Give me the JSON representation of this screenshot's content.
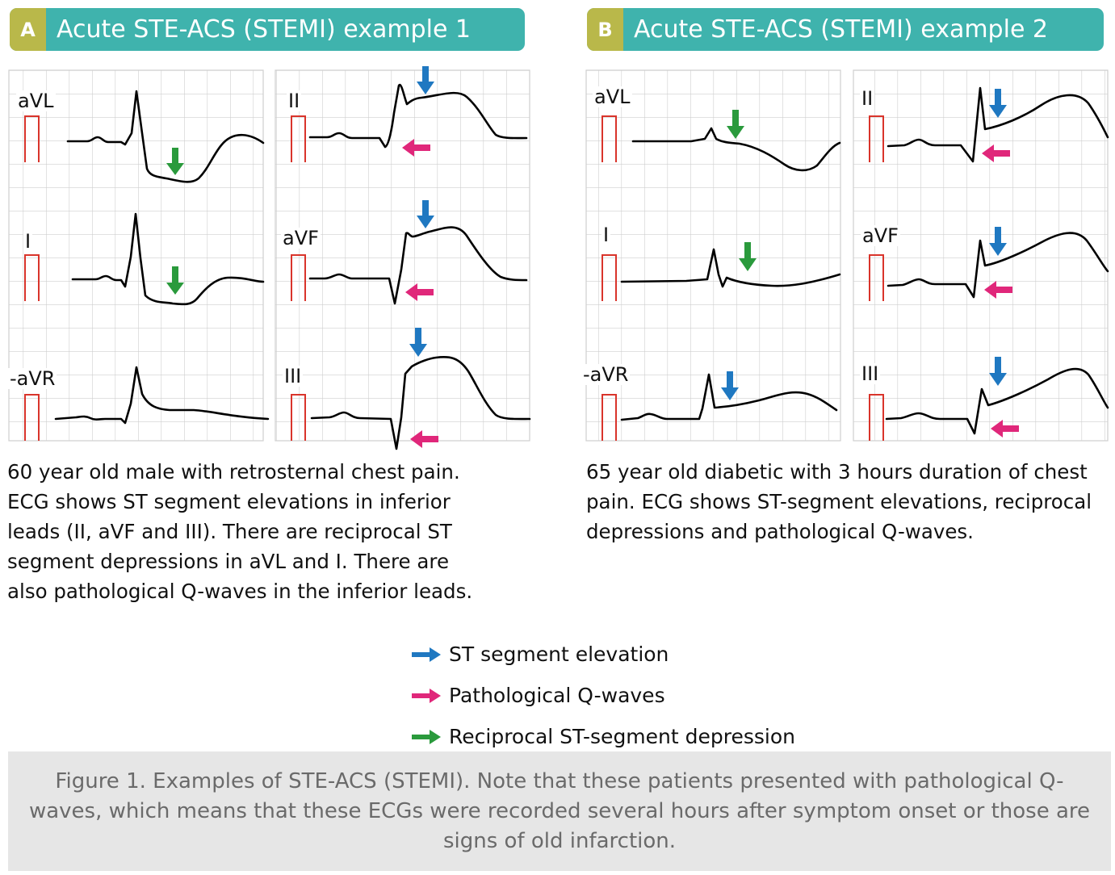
{
  "panels": [
    {
      "letter": "A",
      "title": "Acute STE-ACS (STEMI) example 1",
      "leads": [
        "aVL",
        "II",
        "I",
        "aVF",
        "-aVR",
        "III"
      ],
      "description": [
        "60 year old male with retrosternal chest pain.",
        "ECG shows ST segment elevations in inferior",
        "leads (II, aVF and III). There are reciprocal ST",
        "segment depressions in aVL and I. There are",
        "also pathological Q-waves in the inferior leads."
      ]
    },
    {
      "letter": "B",
      "title": "Acute STE-ACS (STEMI) example 2",
      "leads": [
        "aVL",
        "II",
        "I",
        "aVF",
        "-aVR",
        "III"
      ],
      "description": [
        "65 year old diabetic with 3 hours duration of chest",
        "pain. ECG shows ST-segment elevations, reciprocal",
        "depressions and pathological Q-waves."
      ]
    }
  ],
  "legend": [
    {
      "label": "ST segment elevation",
      "color": "#1f78c1",
      "icon": "blue-arrow-icon"
    },
    {
      "label": "Pathological Q-waves",
      "color": "#e0277a",
      "icon": "pink-arrow-icon"
    },
    {
      "label": "Reciprocal ST-segment depression",
      "color": "#2a9a3c",
      "icon": "green-arrow-icon"
    }
  ],
  "caption": "Figure 1. Examples of STE-ACS (STEMI). Note that these patients presented with pathological Q-waves, which means that these ECGs were recorded several hours after symptom onset or those are signs of old infarction.",
  "colors": {
    "header_bg": "#3fb3ad",
    "letter_bg": "#b9b84a",
    "grid": "#cfcfcf",
    "calibration": "#d9342b",
    "trace": "#000000",
    "st_elevation": "#1f78c1",
    "q_wave": "#e0277a",
    "st_depression": "#2a9a3c",
    "caption_bg": "#e6e6e6",
    "caption_text": "#6a6a6a"
  }
}
